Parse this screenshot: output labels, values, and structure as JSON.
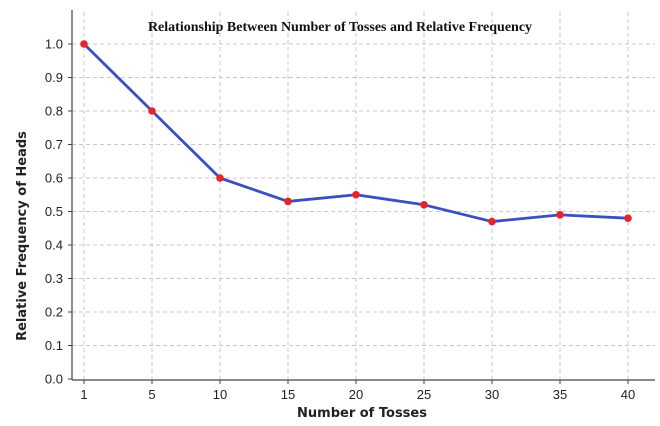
{
  "chart_data": {
    "type": "line",
    "title": "Relationship Between Number of Tosses and Relative Frequency",
    "xlabel": "Number of Tosses",
    "ylabel": "Relative Frequency of Heads",
    "categories": [
      "1",
      "5",
      "10",
      "15",
      "20",
      "25",
      "30",
      "35",
      "40"
    ],
    "x": [
      1,
      5,
      10,
      15,
      20,
      25,
      30,
      35,
      40
    ],
    "y_ticks": [
      "0.0",
      "0.1",
      "0.2",
      "0.3",
      "0.4",
      "0.5",
      "0.6",
      "0.7",
      "0.8",
      "0.9",
      "1.0"
    ],
    "ylim": [
      0,
      1
    ],
    "grid": true,
    "series": [
      {
        "values": [
          1.0,
          0.8,
          0.6,
          0.53,
          0.55,
          0.52,
          0.47,
          0.49,
          0.48
        ]
      }
    ],
    "colors": {
      "line": "#3a4fc1",
      "marker": "#e8242a",
      "grid": "#c8c8c8",
      "axis": "#444444"
    }
  }
}
